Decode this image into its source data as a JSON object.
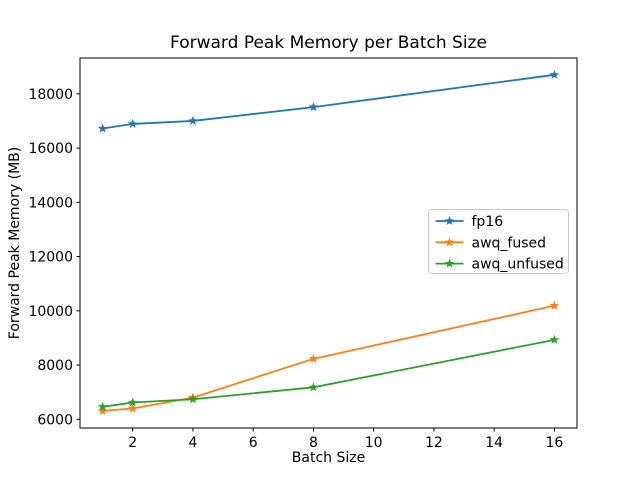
{
  "chart_data": {
    "type": "line",
    "title": "Forward Peak Memory per Batch Size",
    "xlabel": "Batch Size",
    "ylabel": "Forward Peak Memory (MB)",
    "x": [
      1,
      2,
      4,
      8,
      16
    ],
    "series": [
      {
        "name": "fp16",
        "color": "#1f77b4",
        "values": [
          16720,
          16890,
          17000,
          17510,
          18700
        ]
      },
      {
        "name": "awq_fused",
        "color": "#ff7f0e",
        "values": [
          6310,
          6400,
          6800,
          8230,
          10190
        ]
      },
      {
        "name": "awq_unfused",
        "color": "#2ca02c",
        "values": [
          6460,
          6620,
          6740,
          7180,
          8930
        ]
      }
    ],
    "marker": "star",
    "x_ticks": [
      2,
      4,
      6,
      8,
      10,
      12,
      14,
      16
    ],
    "y_ticks": [
      6000,
      8000,
      10000,
      12000,
      14000,
      16000,
      18000
    ],
    "xlim": [
      0.25,
      16.75
    ],
    "ylim": [
      5680,
      19320
    ],
    "grid": false,
    "legend_position": "center-right",
    "legend_labels": [
      "fp16",
      "awq_fused",
      "awq_unfused"
    ],
    "axis_color": "#000000",
    "legend_border_color": "#cccccc",
    "background_color": "#ffffff"
  }
}
